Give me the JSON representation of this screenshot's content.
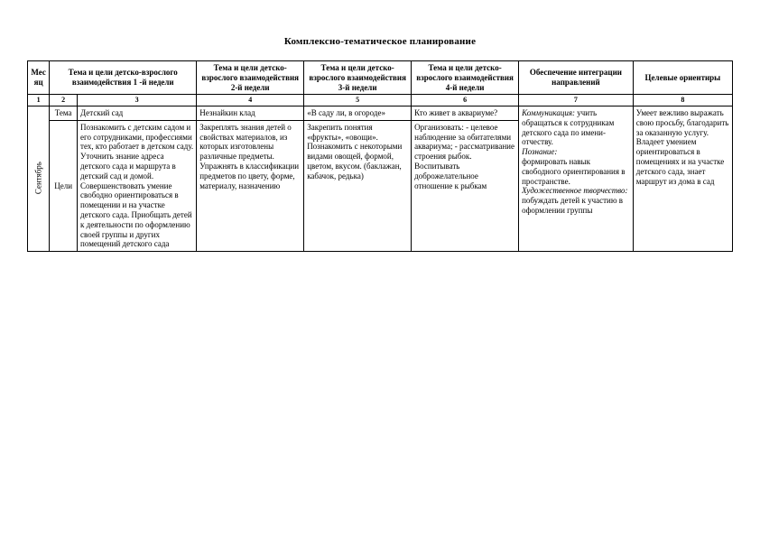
{
  "title": "Комплексно-тематическое планирование",
  "headers": {
    "month": "Месяц",
    "week1": "Тема и цели детско-взрослого взаимодействия 1 -й недели",
    "week2": "Тема и цели  детско-взрослого взаимодействия 2-й недели",
    "week3": "Тема и цели детско-взрослого взаимодействия 3-й недели",
    "week4": "Тема и цели детско-взрослого взаимодействия  4-й недели",
    "integration": "Обеспечение интеграции направлений",
    "targets": "Целевые ориентиры"
  },
  "colnums": {
    "c1": "1",
    "c2": "2",
    "c3": "3",
    "c4": "4",
    "c5": "5",
    "c6": "6",
    "c7": "7",
    "c8": "8"
  },
  "month": "Сентябрь",
  "rowlabels": {
    "tema": "Тема",
    "celi": "Цели"
  },
  "tema": {
    "w1": "Детский сад",
    "w2": "Незнайкин клад",
    "w3": "«В саду ли, в огороде»",
    "w4": "Кто живет в аквариуме?"
  },
  "celi": {
    "w1": "Познакомить с детским садом и его сотрудниками, профессиями тех, кто работает в детском саду. Уточнить знание адреса детского сада и маршрута в детский сад и домой. Совершенствовать умение свободно ориентироваться в помещении и на участке детского сада. Приобщать детей к деятельности по оформлению своей группы и других помещений детского сада",
    "w2": "Закреплять знания детей о свойствах материалов, из которых изготовлены различные предметы. Упражнять в классификации предметов по цвету, форме, материалу, назначению",
    "w3": "Закрепить понятия «фрукты», «овощи». Познакомить с некоторыми видами овощей, формой, цветом, вкусом. (баклажан, кабачок, редька)",
    "w4": "Организовать:\n- целевое наблюдение за обитателями аквариума;\n - рассматривание строения рыбок. Воспитывать доброжелательное отношение к рыбкам"
  },
  "integration": {
    "p1i": "Коммуникация:",
    "p1": " учить обращаться к сотрудникам детского сада по имени-отчеству.",
    "p2i": "Познание:",
    "p2": "формировать навык свободного ориентирования в пространстве.",
    "p3i": "Художественное творчество:",
    "p3": "побуждать детей к участию в оформлении группы"
  },
  "targets": "Умеет вежливо выражать свою просьбу, благодарить за оказанную услугу. Владеет умением ориентироваться в помещениях и на участке детского сада, знает маршрут из дома в сад"
}
